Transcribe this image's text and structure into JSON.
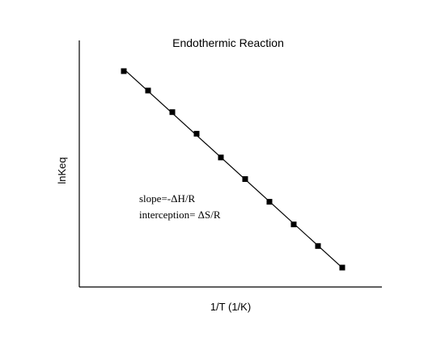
{
  "chart_data": {
    "type": "scatter",
    "title": "Endothermic Reaction",
    "xlabel": "1/T (1/K)",
    "ylabel": "lnKeq",
    "annotations": [
      "slope=-ΔH/R",
      "interception= ΔS/R"
    ],
    "ticks": "none",
    "grid": false,
    "legend": "none",
    "trendline": true,
    "colors": {
      "marker": "#000000",
      "line": "#000000",
      "axes": "#000000"
    },
    "x": [
      1,
      2,
      3,
      4,
      5,
      6,
      7,
      8,
      9,
      10
    ],
    "y": [
      10,
      9.1,
      8.1,
      7.1,
      6.0,
      5.0,
      3.95,
      2.9,
      1.9,
      0.9
    ]
  }
}
